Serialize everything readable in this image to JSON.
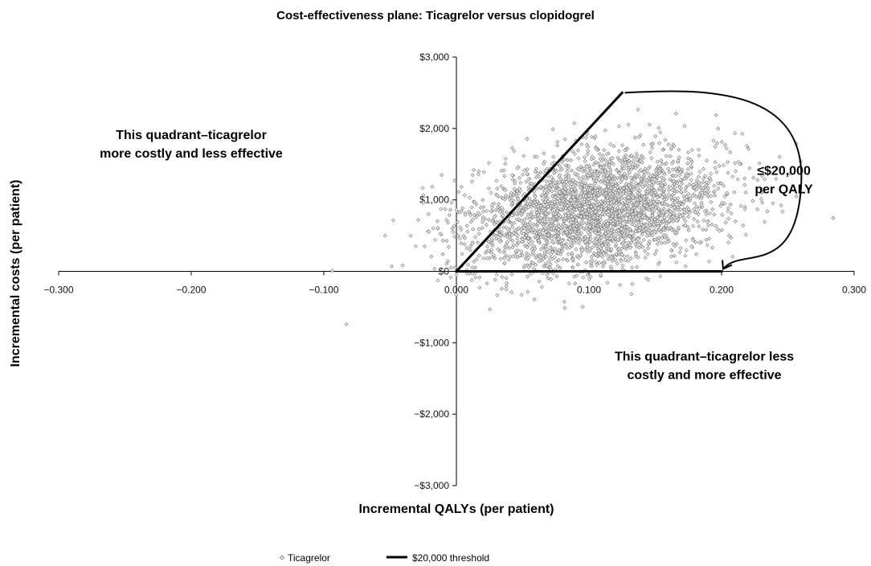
{
  "chart_data": {
    "type": "scatter",
    "title": "Cost-effectiveness plane: Ticagrelor versus clopidogrel",
    "xlabel": "Incremental  QALYs (per patient)",
    "ylabel": "Incremental costs (per patient)",
    "xlim": [
      -0.3,
      0.3
    ],
    "ylim": [
      -3000,
      3000
    ],
    "x_ticks": [
      -0.3,
      -0.2,
      -0.1,
      0.0,
      0.1,
      0.2,
      0.3
    ],
    "x_tick_labels": [
      "−0.300",
      "−0.200",
      "−0.100",
      "0.000",
      "0.100",
      "0.200",
      "0.300"
    ],
    "y_ticks": [
      3000,
      2000,
      1000,
      0,
      -1000,
      -2000,
      -3000
    ],
    "y_tick_labels": [
      "$3,000",
      "$2,000",
      "$1,000",
      "$0",
      "−$1,000",
      "−$2,000",
      "−$3,000"
    ],
    "grid": false,
    "legend_position": "bottom-center",
    "series": [
      {
        "name": "Ticagrelor",
        "marker": "diamond",
        "color": "#8a8a8a",
        "distribution": {
          "n_points": 3000,
          "x_mean": 0.105,
          "x_sd": 0.048,
          "y_mean": 850,
          "y_sd": 420,
          "correlation": 0.28
        }
      },
      {
        "name": "$20,000 threshold",
        "style": "line",
        "color": "#000000",
        "segments": [
          {
            "x": [
              0.0,
              0.125
            ],
            "y": [
              0,
              2500
            ]
          },
          {
            "x": [
              0.0,
              0.2
            ],
            "y": [
              0,
              0
            ]
          }
        ]
      }
    ],
    "annotations": [
      {
        "lines": [
          "This quadrant–ticagrelor",
          "more costly and less effective"
        ],
        "x": -0.2,
        "y": 1850
      },
      {
        "lines": [
          "≤$20,000",
          "per QALY"
        ],
        "x": 0.247,
        "y": 1350
      },
      {
        "lines": [
          "This quadrant–ticagrelor less",
          "costly and more effective"
        ],
        "x": 0.187,
        "y": -1250
      }
    ],
    "arc_arrow": {
      "from": {
        "x": 0.127,
        "y": 2500
      },
      "to": {
        "x": 0.2,
        "y": 0
      }
    }
  }
}
